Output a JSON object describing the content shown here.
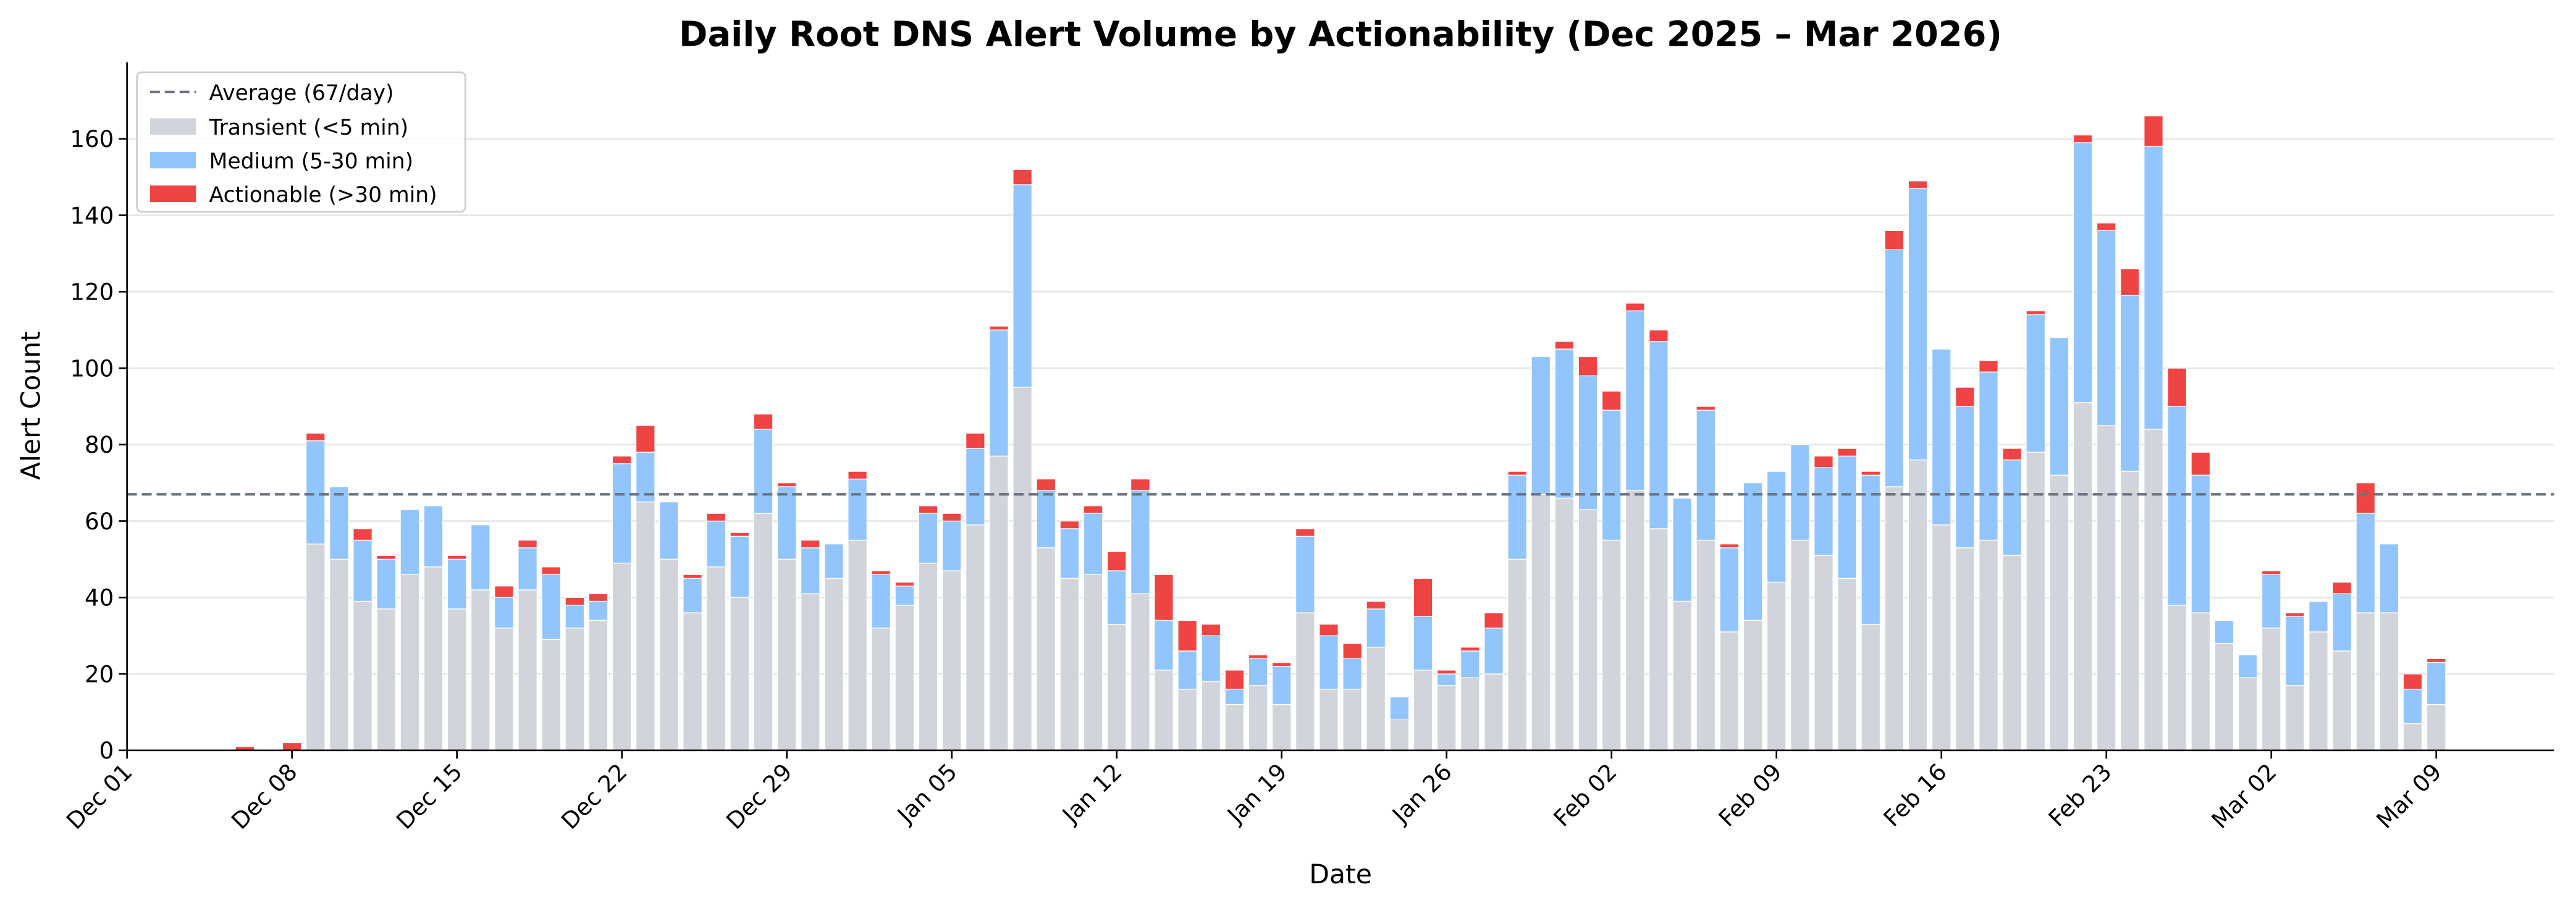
{
  "chart_data": {
    "type": "stacked_bar",
    "title": "Daily Root DNS Alert Volume by Actionability (Dec 2025 – Mar 2026)",
    "x_label": "Date",
    "y_label": "Alert Count",
    "x": [
      "2025-12-06",
      "2025-12-07",
      "2025-12-08",
      "2025-12-09",
      "2025-12-10",
      "2025-12-11",
      "2025-12-12",
      "2025-12-13",
      "2025-12-14",
      "2025-12-15",
      "2025-12-16",
      "2025-12-17",
      "2025-12-18",
      "2025-12-19",
      "2025-12-20",
      "2025-12-21",
      "2025-12-22",
      "2025-12-23",
      "2025-12-24",
      "2025-12-25",
      "2025-12-26",
      "2025-12-27",
      "2025-12-28",
      "2025-12-29",
      "2025-12-30",
      "2025-12-31",
      "2026-01-01",
      "2026-01-02",
      "2026-01-03",
      "2026-01-04",
      "2026-01-05",
      "2026-01-06",
      "2026-01-07",
      "2026-01-08",
      "2026-01-09",
      "2026-01-10",
      "2026-01-11",
      "2026-01-12",
      "2026-01-13",
      "2026-01-14",
      "2026-01-15",
      "2026-01-16",
      "2026-01-17",
      "2026-01-18",
      "2026-01-19",
      "2026-01-20",
      "2026-01-21",
      "2026-01-22",
      "2026-01-23",
      "2026-01-24",
      "2026-01-25",
      "2026-01-26",
      "2026-01-27",
      "2026-01-28",
      "2026-01-29",
      "2026-01-30",
      "2026-01-31",
      "2026-02-01",
      "2026-02-02",
      "2026-02-03",
      "2026-02-04",
      "2026-02-05",
      "2026-02-06",
      "2026-02-07",
      "2026-02-08",
      "2026-02-09",
      "2026-02-10",
      "2026-02-11",
      "2026-02-12",
      "2026-02-13",
      "2026-02-14",
      "2026-02-15",
      "2026-02-16",
      "2026-02-17",
      "2026-02-18",
      "2026-02-19",
      "2026-02-20",
      "2026-02-21",
      "2026-02-22",
      "2026-02-23",
      "2026-02-24",
      "2026-02-25",
      "2026-02-26",
      "2026-02-27",
      "2026-02-28",
      "2026-03-01",
      "2026-03-02",
      "2026-03-03",
      "2026-03-04",
      "2026-03-05",
      "2026-03-06",
      "2026-03-07",
      "2026-03-08",
      "2026-03-09"
    ],
    "series": [
      {
        "name": "Transient (<5 min)",
        "color": "#d1d5db",
        "values": [
          0,
          0,
          0,
          54,
          50,
          39,
          37,
          46,
          48,
          37,
          42,
          32,
          42,
          29,
          32,
          34,
          49,
          65,
          50,
          36,
          48,
          40,
          62,
          50,
          41,
          45,
          55,
          32,
          38,
          49,
          47,
          59,
          77,
          95,
          53,
          45,
          46,
          33,
          41,
          21,
          16,
          18,
          12,
          17,
          12,
          36,
          16,
          16,
          27,
          8,
          21,
          17,
          19,
          20,
          50,
          67,
          66,
          63,
          55,
          68,
          58,
          39,
          55,
          31,
          34,
          44,
          55,
          51,
          45,
          33,
          69,
          76,
          59,
          53,
          55,
          51,
          78,
          72,
          91,
          85,
          73,
          84,
          38,
          36,
          28,
          19,
          32,
          17,
          31,
          26,
          36,
          36,
          7,
          12
        ]
      },
      {
        "name": "Medium (5-30 min)",
        "color": "#93c5fd",
        "values": [
          0,
          0,
          0,
          27,
          19,
          16,
          13,
          17,
          16,
          13,
          17,
          8,
          11,
          17,
          6,
          5,
          26,
          13,
          15,
          9,
          12,
          16,
          22,
          19,
          12,
          9,
          16,
          14,
          5,
          13,
          13,
          20,
          33,
          53,
          15,
          13,
          16,
          14,
          27,
          13,
          10,
          12,
          4,
          7,
          10,
          20,
          14,
          8,
          10,
          6,
          14,
          3,
          7,
          12,
          22,
          36,
          39,
          35,
          34,
          47,
          49,
          27,
          34,
          22,
          36,
          29,
          25,
          23,
          32,
          39,
          62,
          71,
          46,
          37,
          44,
          25,
          36,
          36,
          68,
          51,
          46,
          74,
          52,
          36,
          6,
          6,
          14,
          18,
          8,
          15,
          26,
          18,
          9,
          11
        ]
      },
      {
        "name": "Actionable (>30 min)",
        "color": "#ef4444",
        "values": [
          1,
          0,
          2,
          2,
          0,
          3,
          1,
          0,
          0,
          1,
          0,
          3,
          2,
          2,
          2,
          2,
          2,
          7,
          0,
          1,
          2,
          1,
          4,
          1,
          2,
          0,
          2,
          1,
          1,
          2,
          2,
          4,
          1,
          4,
          3,
          2,
          2,
          5,
          3,
          12,
          8,
          3,
          5,
          1,
          1,
          2,
          3,
          4,
          2,
          0,
          10,
          1,
          1,
          4,
          1,
          0,
          2,
          5,
          5,
          2,
          3,
          0,
          1,
          1,
          0,
          0,
          0,
          3,
          2,
          1,
          5,
          2,
          0,
          5,
          3,
          3,
          1,
          0,
          2,
          2,
          7,
          8,
          10,
          6,
          0,
          0,
          1,
          1,
          0,
          3,
          8,
          0,
          4,
          1
        ]
      }
    ],
    "average": {
      "name": "Average (67/day)",
      "value": 67,
      "color": "#6b7280"
    },
    "xlim": [
      "2025-12-01",
      "2026-03-14"
    ],
    "xticks": [
      {
        "value": "2025-12-01",
        "label": "Dec 01"
      },
      {
        "value": "2025-12-08",
        "label": "Dec 08"
      },
      {
        "value": "2025-12-15",
        "label": "Dec 15"
      },
      {
        "value": "2025-12-22",
        "label": "Dec 22"
      },
      {
        "value": "2025-12-29",
        "label": "Dec 29"
      },
      {
        "value": "2026-01-05",
        "label": "Jan 05"
      },
      {
        "value": "2026-01-12",
        "label": "Jan 12"
      },
      {
        "value": "2026-01-19",
        "label": "Jan 19"
      },
      {
        "value": "2026-01-26",
        "label": "Jan 26"
      },
      {
        "value": "2026-02-02",
        "label": "Feb 02"
      },
      {
        "value": "2026-02-09",
        "label": "Feb 09"
      },
      {
        "value": "2026-02-16",
        "label": "Feb 16"
      },
      {
        "value": "2026-02-23",
        "label": "Feb 23"
      },
      {
        "value": "2026-03-02",
        "label": "Mar 02"
      },
      {
        "value": "2026-03-09",
        "label": "Mar 09"
      }
    ],
    "ylim": [
      0,
      180
    ],
    "yticks": [
      0,
      20,
      40,
      60,
      80,
      100,
      120,
      140,
      160
    ],
    "grid": true,
    "legend": "upper left"
  }
}
